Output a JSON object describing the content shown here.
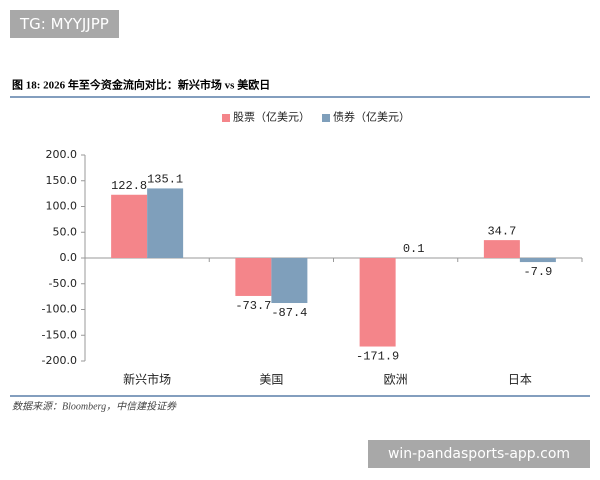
{
  "watermark_top": "TG: MYYJJPP",
  "watermark_bottom": "win-pandasports-app.com",
  "chart_data": {
    "type": "bar",
    "title": "图 18: 2026 年至今资金流向对比：新兴市场 vs 美欧日",
    "source": "数据来源：Bloomberg，中信建投证券",
    "categories": [
      "新兴市场",
      "美国",
      "欧洲",
      "日本"
    ],
    "series": [
      {
        "name": "股票（亿美元）",
        "color": "#f4858a",
        "values": [
          122.8,
          -73.7,
          -171.9,
          34.7
        ]
      },
      {
        "name": "债券（亿美元）",
        "color": "#7f9fbb",
        "values": [
          135.1,
          -87.4,
          0.1,
          -7.9
        ]
      }
    ],
    "ylim": [
      -200,
      200
    ],
    "yticks": [
      {
        "value": 200,
        "label": "200.0"
      },
      {
        "value": 150,
        "label": "150.0"
      },
      {
        "value": 100,
        "label": "100.0"
      },
      {
        "value": 50,
        "label": "50.0"
      },
      {
        "value": 0,
        "label": "0.0"
      },
      {
        "value": -50,
        "label": "-50.0"
      },
      {
        "value": -100,
        "label": "-100.0"
      },
      {
        "value": -150,
        "label": "-150.0"
      },
      {
        "value": -200,
        "label": "-200.0"
      }
    ],
    "legend": "top"
  }
}
